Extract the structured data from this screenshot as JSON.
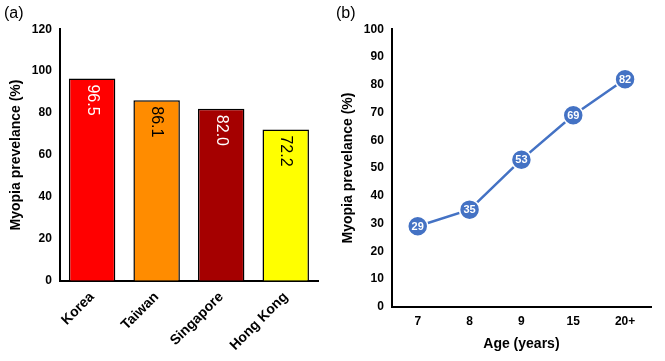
{
  "chart_data": [
    {
      "type": "bar",
      "title": "(a)",
      "y_label": "Myopia prevelance (%)",
      "categories": [
        "Korea",
        "Taiwan",
        "Singapore",
        "Hong Kong"
      ],
      "values": [
        96.5,
        86.1,
        82.0,
        72.2
      ],
      "value_labels": [
        "96.5",
        "86.1",
        "82.0",
        "72.2"
      ],
      "colors": [
        "#ff0000",
        "#ff8c00",
        "#a50000",
        "#ffff00"
      ],
      "ylim": [
        0,
        120
      ],
      "yticks": [
        0,
        20,
        40,
        60,
        80,
        100,
        120
      ],
      "grid": false,
      "data_labels": true
    },
    {
      "type": "line",
      "title": "(b)",
      "x_label": "Age (years)",
      "y_label": "Myopia prevelance (%)",
      "categories": [
        "7",
        "8",
        "9",
        "15",
        "20+"
      ],
      "values": [
        29,
        35,
        53,
        69,
        82
      ],
      "color": "#4472c4",
      "marker": "circle",
      "ylim": [
        0,
        100
      ],
      "yticks": [
        0,
        10,
        20,
        30,
        40,
        50,
        60,
        70,
        80,
        90,
        100
      ],
      "grid": false,
      "data_labels": true
    }
  ]
}
